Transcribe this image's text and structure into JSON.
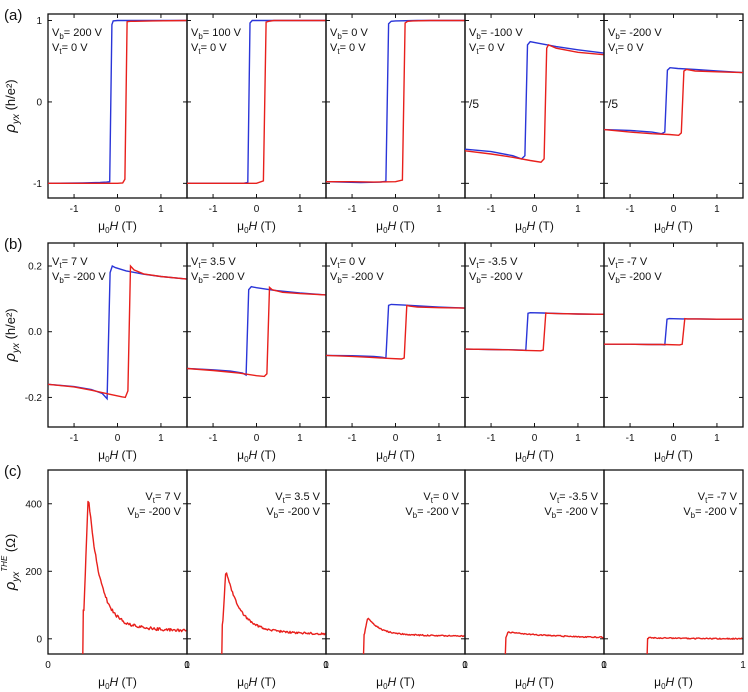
{
  "colors": {
    "sweep_up": "#2a35d8",
    "sweep_down": "#e8201c",
    "the": "#e8201c",
    "frame": "#111111"
  },
  "chart_data": [
    {
      "row": "a",
      "label": "(a)",
      "type": "line",
      "ylabel_main": "ρ",
      "ylabel_sub": "yx",
      "ylabel_unit": " (h/e²)",
      "xlabel_main": "μ",
      "xlabel_sub": "0",
      "xlabel_var": "H",
      "xlabel_unit": " (T)",
      "xlim": [
        -1.6,
        1.6
      ],
      "ylim": [
        -1.18,
        1.08
      ],
      "xticks": [
        -1,
        0,
        1
      ],
      "xtick_labels": [
        "-1",
        "0",
        "1"
      ],
      "yticks": [
        -1,
        0,
        1
      ],
      "ytick_labels": [
        "-1",
        "0",
        "1"
      ],
      "panels": [
        {
          "ann1_main": "V",
          "ann1_sub": "b",
          "ann1_val": "= 200 V",
          "ann2_main": "V",
          "ann2_sub": "t",
          "ann2_val": "= 0 V",
          "scale_note": "",
          "hc": 0.2,
          "sat": 1.0,
          "up_x": [
            -1.6,
            -0.8,
            -0.4,
            -0.25,
            -0.18,
            -0.13,
            -0.1,
            0.0,
            0.5,
            1.0,
            1.6
          ],
          "up_y": [
            -1.0,
            -0.995,
            -0.99,
            -0.985,
            -0.98,
            0.95,
            0.995,
            1.0,
            1.0,
            1.0,
            1.0
          ],
          "down_x": [
            1.6,
            0.8,
            0.4,
            0.3,
            0.22,
            0.17,
            0.12,
            0.0,
            -0.5,
            -1.0,
            -1.6
          ],
          "down_y": [
            1.0,
            0.995,
            0.99,
            0.99,
            0.985,
            -0.95,
            -0.995,
            -1.0,
            -1.0,
            -1.0,
            -1.0
          ]
        },
        {
          "ann1_main": "V",
          "ann1_sub": "b",
          "ann1_val": "= 100 V",
          "ann2_main": "V",
          "ann2_sub": "t",
          "ann2_val": "= 0 V",
          "scale_note": "",
          "hc": 0.2,
          "sat": 1.0,
          "up_x": [
            -1.6,
            -0.8,
            -0.3,
            -0.2,
            -0.15,
            -0.1,
            0.0,
            0.5,
            1.0,
            1.6
          ],
          "up_y": [
            -1.0,
            -1.0,
            -1.0,
            -0.99,
            0.97,
            1.0,
            1.0,
            1.0,
            1.0,
            1.0
          ],
          "down_x": [
            1.6,
            0.8,
            0.4,
            0.28,
            0.22,
            0.16,
            0.0,
            -0.5,
            -1.0,
            -1.6
          ],
          "down_y": [
            1.0,
            1.0,
            1.0,
            0.99,
            0.98,
            -0.97,
            -1.0,
            -1.0,
            -1.0,
            -1.0
          ]
        },
        {
          "ann1_main": "V",
          "ann1_sub": "b",
          "ann1_val": "= 0 V",
          "ann2_main": "V",
          "ann2_sub": "t",
          "ann2_val": "= 0 V",
          "scale_note": "",
          "hc": 0.2,
          "sat": 1.0,
          "up_x": [
            -1.6,
            -0.8,
            -0.35,
            -0.22,
            -0.16,
            -0.1,
            0.0,
            0.5,
            1.0,
            1.6
          ],
          "up_y": [
            -0.98,
            -0.99,
            -0.985,
            -0.975,
            0.96,
            0.99,
            0.995,
            1.0,
            1.0,
            1.0
          ],
          "down_x": [
            1.6,
            0.8,
            0.4,
            0.28,
            0.22,
            0.16,
            0.0,
            -0.5,
            -1.0,
            -1.6
          ],
          "down_y": [
            1.0,
            1.0,
            0.995,
            0.99,
            0.97,
            -0.96,
            -0.98,
            -0.985,
            -0.98,
            -0.98
          ]
        },
        {
          "ann1_main": "V",
          "ann1_sub": "b",
          "ann1_val": "= -100 V",
          "ann2_main": "V",
          "ann2_sub": "t",
          "ann2_val": "= 0 V",
          "scale_note": "/5",
          "hc": 0.25,
          "sat": 0.62,
          "up_x": [
            -1.6,
            -1.0,
            -0.5,
            -0.3,
            -0.22,
            -0.16,
            -0.1,
            0.1,
            0.5,
            1.0,
            1.6
          ],
          "up_y": [
            -0.58,
            -0.61,
            -0.66,
            -0.7,
            -0.66,
            0.7,
            0.74,
            0.72,
            0.68,
            0.64,
            0.6
          ],
          "down_x": [
            1.6,
            1.0,
            0.5,
            0.32,
            0.28,
            0.22,
            0.15,
            -0.1,
            -0.5,
            -1.0,
            -1.6
          ],
          "down_y": [
            0.58,
            0.61,
            0.66,
            0.7,
            0.66,
            -0.7,
            -0.74,
            -0.72,
            -0.68,
            -0.64,
            -0.6
          ]
        },
        {
          "ann1_main": "V",
          "ann1_sub": "b",
          "ann1_val": "= -200 V",
          "ann2_main": "V",
          "ann2_sub": "t",
          "ann2_val": "= 0 V",
          "scale_note": "/5",
          "hc": 0.22,
          "sat": 0.36,
          "up_x": [
            -1.6,
            -1.0,
            -0.5,
            -0.28,
            -0.2,
            -0.14,
            -0.08,
            0.1,
            0.5,
            1.0,
            1.6
          ],
          "up_y": [
            -0.34,
            -0.35,
            -0.37,
            -0.39,
            -0.37,
            0.39,
            0.42,
            0.41,
            0.4,
            0.38,
            0.36
          ],
          "down_x": [
            1.6,
            1.0,
            0.5,
            0.3,
            0.24,
            0.18,
            0.12,
            -0.1,
            -0.5,
            -1.0,
            -1.6
          ],
          "down_y": [
            0.36,
            0.37,
            0.38,
            0.4,
            0.38,
            -0.38,
            -0.41,
            -0.4,
            -0.39,
            -0.37,
            -0.34
          ]
        }
      ]
    },
    {
      "row": "b",
      "label": "(b)",
      "type": "line",
      "ylabel_main": "ρ",
      "ylabel_sub": "yx",
      "ylabel_unit": " (h/e²)",
      "xlabel_main": "μ",
      "xlabel_sub": "0",
      "xlabel_var": "H",
      "xlabel_unit": " (T)",
      "xlim": [
        -1.6,
        1.6
      ],
      "ylim": [
        -0.29,
        0.27
      ],
      "xticks": [
        -1,
        0,
        1
      ],
      "xtick_labels": [
        "-1",
        "0",
        "1"
      ],
      "yticks": [
        -0.2,
        0,
        0.2
      ],
      "ytick_labels": [
        "-0.2",
        "0.0",
        "0.2"
      ],
      "panels": [
        {
          "ann1_main": "V",
          "ann1_sub": "t",
          "ann1_val": "= 7 V",
          "ann2_main": "V",
          "ann2_sub": "b",
          "ann2_val": "= -200 V",
          "scale_note": "",
          "up_x": [
            -1.6,
            -1.0,
            -0.6,
            -0.35,
            -0.24,
            -0.17,
            -0.12,
            -0.05,
            0.2,
            0.6,
            1.0,
            1.6
          ],
          "up_y": [
            -0.16,
            -0.167,
            -0.176,
            -0.188,
            -0.204,
            0.18,
            0.2,
            0.195,
            0.185,
            0.175,
            0.168,
            0.16
          ],
          "down_x": [
            1.6,
            1.0,
            0.6,
            0.38,
            0.3,
            0.24,
            0.18,
            0.1,
            -0.2,
            -0.6,
            -1.0,
            -1.6
          ],
          "down_y": [
            0.16,
            0.168,
            0.176,
            0.188,
            0.2,
            -0.18,
            -0.2,
            -0.198,
            -0.19,
            -0.178,
            -0.168,
            -0.16
          ]
        },
        {
          "ann1_main": "V",
          "ann1_sub": "t",
          "ann1_val": "= 3.5 V",
          "ann2_main": "V",
          "ann2_sub": "b",
          "ann2_val": "= -200 V",
          "scale_note": "",
          "up_x": [
            -1.6,
            -1.0,
            -0.6,
            -0.32,
            -0.24,
            -0.18,
            -0.12,
            0.0,
            0.4,
            1.0,
            1.6
          ],
          "up_y": [
            -0.112,
            -0.116,
            -0.12,
            -0.126,
            -0.132,
            0.128,
            0.137,
            0.134,
            0.126,
            0.118,
            0.112
          ],
          "down_x": [
            1.6,
            1.0,
            0.6,
            0.36,
            0.3,
            0.24,
            0.18,
            0.0,
            -0.4,
            -1.0,
            -1.6
          ],
          "down_y": [
            0.112,
            0.116,
            0.12,
            0.128,
            0.135,
            -0.128,
            -0.136,
            -0.134,
            -0.126,
            -0.118,
            -0.112
          ]
        },
        {
          "ann1_main": "V",
          "ann1_sub": "t",
          "ann1_val": "= 0 V",
          "ann2_main": "V",
          "ann2_sub": "b",
          "ann2_val": "= -200 V",
          "scale_note": "",
          "up_x": [
            -1.6,
            -1.0,
            -0.5,
            -0.3,
            -0.22,
            -0.16,
            -0.1,
            0.2,
            0.6,
            1.0,
            1.6
          ],
          "up_y": [
            -0.072,
            -0.073,
            -0.075,
            -0.078,
            -0.08,
            0.08,
            0.083,
            0.081,
            0.078,
            0.075,
            0.072
          ],
          "down_x": [
            1.6,
            1.0,
            0.5,
            0.32,
            0.26,
            0.2,
            0.14,
            -0.2,
            -0.6,
            -1.0,
            -1.6
          ],
          "down_y": [
            0.072,
            0.073,
            0.075,
            0.078,
            0.08,
            -0.08,
            -0.083,
            -0.081,
            -0.078,
            -0.075,
            -0.072
          ]
        },
        {
          "ann1_main": "V",
          "ann1_sub": "t",
          "ann1_val": "= -3.5 V",
          "ann2_main": "V",
          "ann2_sub": "b",
          "ann2_val": "= -200 V",
          "scale_note": "",
          "up_x": [
            -1.6,
            -1.0,
            -0.5,
            -0.28,
            -0.2,
            -0.15,
            -0.1,
            0.2,
            0.6,
            1.0,
            1.6
          ],
          "up_y": [
            -0.053,
            -0.054,
            -0.055,
            -0.056,
            -0.057,
            0.056,
            0.058,
            0.057,
            0.055,
            0.054,
            0.053
          ],
          "down_x": [
            1.6,
            1.0,
            0.5,
            0.32,
            0.26,
            0.2,
            0.14,
            -0.2,
            -0.6,
            -1.0,
            -1.6
          ],
          "down_y": [
            0.053,
            0.054,
            0.055,
            0.056,
            0.057,
            -0.056,
            -0.058,
            -0.057,
            -0.055,
            -0.054,
            -0.053
          ]
        },
        {
          "ann1_main": "V",
          "ann1_sub": "t",
          "ann1_val": "= -7 V",
          "ann2_main": "V",
          "ann2_sub": "b",
          "ann2_val": "= -200 V",
          "scale_note": "",
          "up_x": [
            -1.6,
            -1.0,
            -0.5,
            -0.28,
            -0.2,
            -0.15,
            -0.1,
            0.2,
            0.6,
            1.0,
            1.6
          ],
          "up_y": [
            -0.038,
            -0.038,
            -0.039,
            -0.039,
            -0.04,
            0.038,
            0.04,
            0.039,
            0.039,
            0.038,
            0.038
          ],
          "down_x": [
            1.6,
            1.0,
            0.5,
            0.32,
            0.26,
            0.2,
            0.14,
            -0.2,
            -0.6,
            -1.0,
            -1.6
          ],
          "down_y": [
            0.038,
            0.038,
            0.039,
            0.039,
            0.04,
            -0.038,
            -0.04,
            -0.039,
            -0.039,
            -0.038,
            -0.038
          ]
        }
      ]
    },
    {
      "row": "c",
      "label": "(c)",
      "type": "line",
      "ylabel_main": "ρ",
      "ylabel_sub": "yx",
      "ylabel_sup": "THE",
      "ylabel_unit": " (Ω)",
      "xlabel_main": "μ",
      "xlabel_sub": "0",
      "xlabel_var": "H",
      "xlabel_unit": " (T)",
      "xlim": [
        0,
        1.0
      ],
      "ylim": [
        -45,
        500
      ],
      "xticks": [
        0,
        1
      ],
      "xtick_labels": [
        "0",
        "1"
      ],
      "yticks": [
        0,
        200,
        400
      ],
      "ytick_labels": [
        "0",
        "200",
        "400"
      ],
      "panels": [
        {
          "ann1_main": "V",
          "ann1_sub": "t",
          "ann1_val": "= 7 V",
          "ann2_main": "V",
          "ann2_sub": "b",
          "ann2_val": "= -200 V",
          "scale_note": "",
          "peak_x": 0.29,
          "peak_y": 428,
          "onset_x": 0.25,
          "decay": 0.085,
          "tail": 35,
          "tail_slope": 14
        },
        {
          "ann1_main": "V",
          "ann1_sub": "t",
          "ann1_val": "= 3.5 V",
          "ann2_main": "V",
          "ann2_sub": "b",
          "ann2_val": "= -200 V",
          "scale_note": "",
          "peak_x": 0.28,
          "peak_y": 207,
          "onset_x": 0.25,
          "decay": 0.1,
          "tail": 22,
          "tail_slope": 10
        },
        {
          "ann1_main": "V",
          "ann1_sub": "t",
          "ann1_val": "= 0 V",
          "ann2_main": "V",
          "ann2_sub": "b",
          "ann2_val": "= -200 V",
          "scale_note": "",
          "peak_x": 0.3,
          "peak_y": 63,
          "onset_x": 0.27,
          "decay": 0.09,
          "tail": 12,
          "tail_slope": 5
        },
        {
          "ann1_main": "V",
          "ann1_sub": "t",
          "ann1_val": "= -3.5 V",
          "ann2_main": "V",
          "ann2_sub": "b",
          "ann2_val": "= -200 V",
          "scale_note": "",
          "peak_x": 0.31,
          "peak_y": 20,
          "onset_x": 0.29,
          "decay": 0.3,
          "tail": 5,
          "tail_slope": 3
        },
        {
          "ann1_main": "V",
          "ann1_sub": "t",
          "ann1_val": "= -7 V",
          "ann2_main": "V",
          "ann2_sub": "b",
          "ann2_val": "= -200 V",
          "scale_note": "",
          "peak_x": 0.33,
          "peak_y": 3,
          "onset_x": 0.31,
          "decay": 0.3,
          "tail": 0,
          "tail_slope": 0
        }
      ]
    }
  ]
}
